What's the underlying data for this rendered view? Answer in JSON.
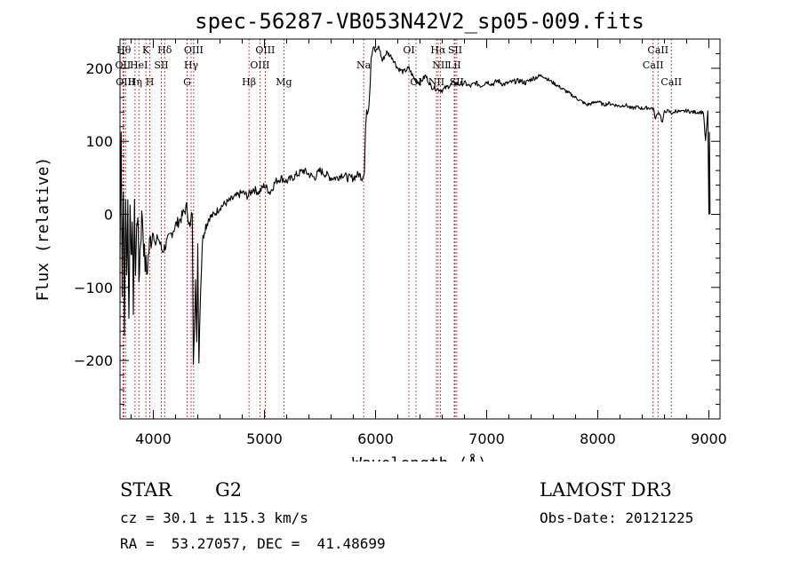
{
  "chart_data": {
    "type": "line",
    "title": "spec-56287-VB053N42V2_sp05-009.fits",
    "xlabel": "Wavelength (Å)",
    "ylabel": "Flux (relative)",
    "xlim": [
      3700,
      9100
    ],
    "ylim": [
      -280,
      240
    ],
    "xticks": [
      4000,
      5000,
      6000,
      7000,
      8000,
      9000
    ],
    "yticks": [
      -200,
      -100,
      0,
      100,
      200
    ],
    "grid": false,
    "series": [
      {
        "name": "flux",
        "x": [
          3700,
          3710,
          3720,
          3730,
          3740,
          3750,
          3760,
          3770,
          3780,
          3790,
          3800,
          3810,
          3820,
          3830,
          3840,
          3850,
          3860,
          3870,
          3880,
          3890,
          3900,
          3920,
          3940,
          3960,
          3980,
          4000,
          4020,
          4040,
          4060,
          4080,
          4100,
          4150,
          4200,
          4250,
          4300,
          4330,
          4350,
          4360,
          4370,
          4380,
          4390,
          4400,
          4410,
          4420,
          4440,
          4460,
          4500,
          4550,
          4600,
          4650,
          4700,
          4750,
          4800,
          4850,
          4900,
          4950,
          5000,
          5050,
          5100,
          5150,
          5200,
          5250,
          5300,
          5350,
          5400,
          5450,
          5500,
          5550,
          5600,
          5650,
          5700,
          5750,
          5800,
          5850,
          5880,
          5900,
          5910,
          5920,
          5930,
          5940,
          5950,
          5960,
          5980,
          6000,
          6030,
          6060,
          6100,
          6150,
          6200,
          6250,
          6300,
          6350,
          6400,
          6450,
          6500,
          6550,
          6600,
          6650,
          6700,
          6750,
          6800,
          6850,
          6900,
          6950,
          7000,
          7050,
          7100,
          7150,
          7200,
          7250,
          7300,
          7350,
          7400,
          7450,
          7500,
          7550,
          7600,
          7650,
          7700,
          7750,
          7800,
          7850,
          7900,
          7950,
          8000,
          8050,
          8100,
          8150,
          8200,
          8250,
          8300,
          8350,
          8400,
          8450,
          8500,
          8520,
          8540,
          8560,
          8580,
          8600,
          8620,
          8650,
          8680,
          8700,
          8750,
          8800,
          8850,
          8900,
          8950,
          8970,
          8990,
          9000,
          9005,
          9010
        ],
        "values": [
          -60,
          130,
          -110,
          50,
          -170,
          30,
          -90,
          20,
          -150,
          10,
          -40,
          -30,
          -120,
          0,
          -80,
          -20,
          10,
          -90,
          -50,
          -20,
          5,
          -60,
          -80,
          -50,
          -30,
          -20,
          -45,
          -30,
          -40,
          -50,
          -45,
          -30,
          -15,
          -5,
          10,
          -20,
          5,
          -200,
          -150,
          -90,
          -180,
          -40,
          -200,
          -130,
          -40,
          -20,
          -5,
          0,
          10,
          15,
          20,
          25,
          30,
          25,
          35,
          30,
          40,
          30,
          45,
          50,
          45,
          50,
          55,
          60,
          55,
          50,
          60,
          55,
          50,
          50,
          55,
          50,
          50,
          55,
          50,
          60,
          120,
          140,
          140,
          150,
          175,
          215,
          230,
          222,
          230,
          210,
          222,
          215,
          200,
          195,
          200,
          185,
          180,
          190,
          175,
          172,
          170,
          175,
          180,
          178,
          180,
          175,
          180,
          176,
          182,
          178,
          183,
          178,
          180,
          182,
          183,
          180,
          185,
          188,
          190,
          185,
          180,
          175,
          170,
          165,
          160,
          155,
          150,
          152,
          155,
          150,
          152,
          150,
          148,
          150,
          145,
          147,
          145,
          146,
          145,
          130,
          140,
          138,
          125,
          140,
          142,
          140,
          138,
          142,
          140,
          142,
          140,
          140,
          140,
          100,
          140,
          0,
          110,
          0
        ]
      }
    ],
    "line_labels": [
      {
        "name": "OII",
        "wl": 3727,
        "row": 1
      },
      {
        "name": "Hθ",
        "wl": 3734,
        "row": 0
      },
      {
        "name": "OIII",
        "wl": 3750,
        "row": 2
      },
      {
        "name": "Hη",
        "wl": 3835,
        "row": 2
      },
      {
        "name": "HeI",
        "wl": 3870,
        "row": 1
      },
      {
        "name": "K",
        "wl": 3933,
        "row": 0
      },
      {
        "name": "H",
        "wl": 3968,
        "row": 2
      },
      {
        "name": "SII",
        "wl": 4072,
        "row": 1
      },
      {
        "name": "Hδ",
        "wl": 4102,
        "row": 0
      },
      {
        "name": "OIII",
        "wl": 4363,
        "row": 0
      },
      {
        "name": "Hγ",
        "wl": 4340,
        "row": 1
      },
      {
        "name": "G",
        "wl": 4304,
        "row": 2
      },
      {
        "name": "Hβ",
        "wl": 4861,
        "row": 2
      },
      {
        "name": "OIII",
        "wl": 4959,
        "row": 1
      },
      {
        "name": "OIII",
        "wl": 5007,
        "row": 0
      },
      {
        "name": "Mg",
        "wl": 5175,
        "row": 2
      },
      {
        "name": "Na",
        "wl": 5893,
        "row": 1
      },
      {
        "name": "OI",
        "wl": 6300,
        "row": 0
      },
      {
        "name": "OI",
        "wl": 6364,
        "row": 2
      },
      {
        "name": "NII",
        "wl": 6548,
        "row": 2
      },
      {
        "name": "Hα",
        "wl": 6563,
        "row": 0
      },
      {
        "name": "NII",
        "wl": 6583,
        "row": 1
      },
      {
        "name": "SII",
        "wl": 6716,
        "row": 0
      },
      {
        "name": "SII",
        "wl": 6731,
        "row": 2
      },
      {
        "name": "LiI",
        "wl": 6708,
        "row": 1
      },
      {
        "name": "CaII",
        "wl": 8498,
        "row": 1
      },
      {
        "name": "CaII",
        "wl": 8542,
        "row": 0
      },
      {
        "name": "CaII",
        "wl": 8662,
        "row": 2
      }
    ]
  },
  "info": {
    "object_class": "STAR",
    "subclass": "G2",
    "survey": "LAMOST DR3",
    "cz": "cz = 30.1 ± 115.3 km/s",
    "obs_date": "Obs-Date: 20121225",
    "coords": "RA =  53.27057, DEC =  41.48699"
  },
  "colors": {
    "line": "#000000",
    "marker": "#b22222"
  }
}
